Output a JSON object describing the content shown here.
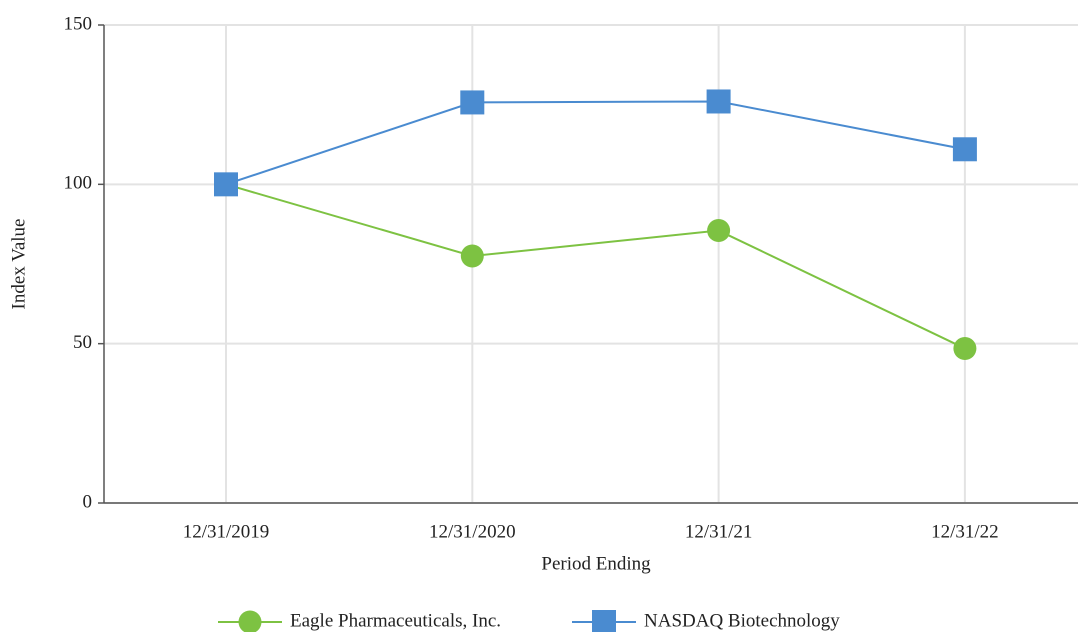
{
  "chart_data": {
    "type": "line",
    "xlabel": "Period Ending",
    "ylabel": "Index Value",
    "categories": [
      "12/31/2019",
      "12/31/2020",
      "12/31/21",
      "12/31/22"
    ],
    "series": [
      {
        "name": "Eagle Pharmaceuticals, Inc.",
        "color": "#7dc242",
        "marker": "circle",
        "values": [
          100,
          77.5,
          85.5,
          48.5
        ]
      },
      {
        "name": "NASDAQ Biotechnology",
        "color": "#4a8bd0",
        "marker": "square",
        "values": [
          100,
          125.7,
          126,
          111
        ]
      }
    ],
    "ylim": [
      0,
      150
    ],
    "yticks": [
      0,
      50,
      100,
      150
    ],
    "grid": true,
    "legend": "bottom"
  }
}
